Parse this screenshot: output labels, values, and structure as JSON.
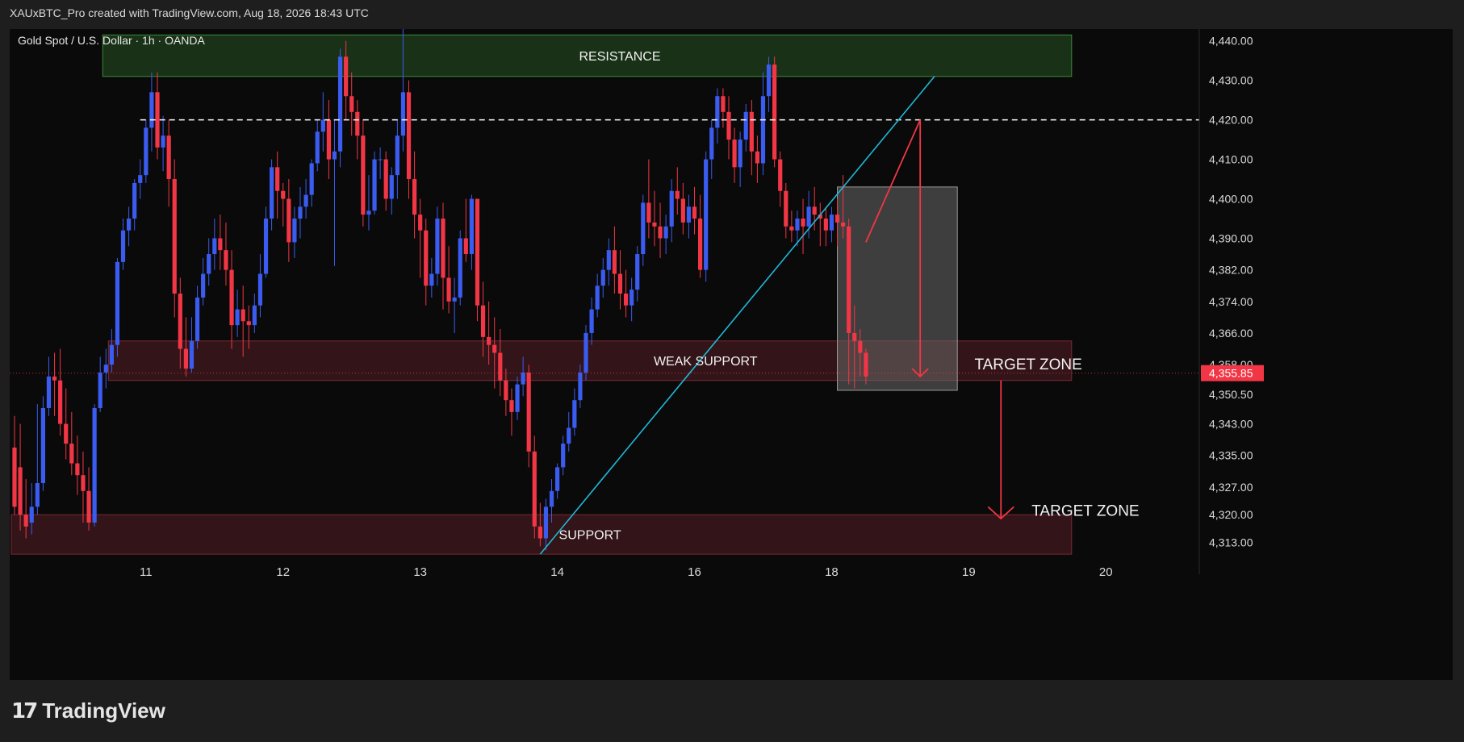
{
  "header": {
    "caption": "XAUxBTC_Pro created with TradingView.com, Aug 18, 2026 18:43 UTC"
  },
  "brand": {
    "logo_mark": "17",
    "name": "TradingView"
  },
  "colors": {
    "up": "#3b5cf0",
    "down": "#f23645",
    "trendline": "#1fb8d6",
    "resistance": "#1c3a1a",
    "zone": "#3d161b",
    "box": "#4a4a4a"
  },
  "chart_data": {
    "type": "candlestick",
    "symbol_label": "Gold Spot / U.S. Dollar · 1h · OANDA",
    "ylim": [
      4309,
      4443
    ],
    "y_ticks": [
      4440,
      4430,
      4420,
      4410,
      4400,
      4390,
      4382,
      4374,
      4366,
      4358,
      4350.5,
      4343,
      4335,
      4327,
      4320,
      4313
    ],
    "y_tick_labels": [
      "4,440.00",
      "4,430.00",
      "4,420.00",
      "4,410.00",
      "4,400.00",
      "4,390.00",
      "4,382.00",
      "4,374.00",
      "4,366.00",
      "4,358.00",
      "4,350.50",
      "4,343.00",
      "4,335.00",
      "4,327.00",
      "4,320.00",
      "4,313.00"
    ],
    "x_ticks": [
      {
        "label": "11",
        "index": 23
      },
      {
        "label": "12",
        "index": 47
      },
      {
        "label": "13",
        "index": 71
      },
      {
        "label": "14",
        "index": 95
      },
      {
        "label": "16",
        "index": 119
      },
      {
        "label": "18",
        "index": 143
      },
      {
        "label": "19",
        "index": 167
      },
      {
        "label": "20",
        "index": 191
      }
    ],
    "last_price": 4355.85,
    "last_price_label": "4,355.85",
    "candles": [
      [
        4337,
        4345,
        4322,
        4320
      ],
      [
        4332,
        4343,
        4320,
        4316
      ],
      [
        4320,
        4329,
        4317,
        4314
      ],
      [
        4318,
        4328,
        4322,
        4315
      ],
      [
        4322,
        4348,
        4328,
        4320
      ],
      [
        4328,
        4350,
        4347,
        4326
      ],
      [
        4347,
        4360,
        4355,
        4345
      ],
      [
        4355,
        4361,
        4354,
        4345
      ],
      [
        4354,
        4362,
        4343,
        4340
      ],
      [
        4343,
        4352,
        4338,
        4334
      ],
      [
        4338,
        4346,
        4333,
        4330
      ],
      [
        4333,
        4340,
        4330,
        4325
      ],
      [
        4330,
        4336,
        4326,
        4318
      ],
      [
        4326,
        4332,
        4318,
        4316
      ],
      [
        4318,
        4348,
        4347,
        4317
      ],
      [
        4347,
        4360,
        4356,
        4346
      ],
      [
        4356,
        4362,
        4358,
        4352
      ],
      [
        4358,
        4367,
        4363,
        4356
      ],
      [
        4363,
        4385,
        4384,
        4360
      ],
      [
        4384,
        4395,
        4392,
        4382
      ],
      [
        4392,
        4398,
        4395,
        4388
      ],
      [
        4395,
        4405,
        4404,
        4392
      ],
      [
        4404,
        4410,
        4406,
        4400
      ],
      [
        4406,
        4420,
        4418,
        4404
      ],
      [
        4418,
        4432,
        4427,
        4412
      ],
      [
        4427,
        4432,
        4413,
        4410
      ],
      [
        4413,
        4421,
        4416,
        4407
      ],
      [
        4416,
        4420,
        4405,
        4398
      ],
      [
        4405,
        4410,
        4376,
        4370
      ],
      [
        4376,
        4380,
        4362,
        4357
      ],
      [
        4362,
        4370,
        4357,
        4355
      ],
      [
        4357,
        4370,
        4364,
        4356
      ],
      [
        4364,
        4378,
        4375,
        4362
      ],
      [
        4375,
        4385,
        4381,
        4373
      ],
      [
        4381,
        4390,
        4386,
        4378
      ],
      [
        4386,
        4395,
        4390,
        4382
      ],
      [
        4390,
        4396,
        4387,
        4382
      ],
      [
        4387,
        4394,
        4382,
        4378
      ],
      [
        4382,
        4387,
        4368,
        4362
      ],
      [
        4368,
        4377,
        4372,
        4365
      ],
      [
        4372,
        4378,
        4369,
        4360
      ],
      [
        4369,
        4373,
        4368,
        4362
      ],
      [
        4368,
        4376,
        4373,
        4366
      ],
      [
        4373,
        4386,
        4381,
        4370
      ],
      [
        4381,
        4398,
        4395,
        4380
      ],
      [
        4395,
        4410,
        4408,
        4392
      ],
      [
        4408,
        4412,
        4402,
        4395
      ],
      [
        4402,
        4404,
        4400,
        4393
      ],
      [
        4400,
        4405,
        4389,
        4384
      ],
      [
        4389,
        4398,
        4395,
        4385
      ],
      [
        4395,
        4403,
        4398,
        4390
      ],
      [
        4398,
        4405,
        4401,
        4395
      ],
      [
        4401,
        4410,
        4409,
        4398
      ],
      [
        4409,
        4420,
        4417,
        4407
      ],
      [
        4417,
        4427,
        4420,
        4412
      ],
      [
        4420,
        4425,
        4410,
        4405
      ],
      [
        4410,
        4420,
        4412,
        4383
      ],
      [
        4412,
        4438,
        4436,
        4408
      ],
      [
        4436,
        4440,
        4426,
        4420
      ],
      [
        4426,
        4432,
        4422,
        4416
      ],
      [
        4422,
        4425,
        4416,
        4410
      ],
      [
        4416,
        4420,
        4396,
        4393
      ],
      [
        4396,
        4406,
        4397,
        4392
      ],
      [
        4397,
        4412,
        4410,
        4396
      ],
      [
        4410,
        4413,
        4410,
        4405
      ],
      [
        4410,
        4412,
        4400,
        4397
      ],
      [
        4400,
        4408,
        4406,
        4396
      ],
      [
        4406,
        4420,
        4416,
        4400
      ],
      [
        4416,
        4447,
        4427,
        4412
      ],
      [
        4427,
        4430,
        4405,
        4400
      ],
      [
        4405,
        4412,
        4396,
        4390
      ],
      [
        4396,
        4400,
        4392,
        4380
      ],
      [
        4392,
        4395,
        4378,
        4373
      ],
      [
        4378,
        4385,
        4381,
        4375
      ],
      [
        4381,
        4398,
        4395,
        4378
      ],
      [
        4395,
        4399,
        4380,
        4372
      ],
      [
        4380,
        4388,
        4374,
        4371
      ],
      [
        4374,
        4380,
        4375,
        4366
      ],
      [
        4375,
        4392,
        4390,
        4373
      ],
      [
        4390,
        4400,
        4386,
        4384
      ],
      [
        4386,
        4401,
        4400,
        4382
      ],
      [
        4400,
        4400,
        4373,
        4369
      ],
      [
        4373,
        4379,
        4365,
        4360
      ],
      [
        4365,
        4374,
        4363,
        4358
      ],
      [
        4363,
        4370,
        4361,
        4352
      ],
      [
        4361,
        4367,
        4354,
        4350
      ],
      [
        4354,
        4357,
        4349,
        4345
      ],
      [
        4349,
        4352,
        4346,
        4340
      ],
      [
        4346,
        4355,
        4353,
        4344
      ],
      [
        4353,
        4360,
        4356,
        4350
      ],
      [
        4356,
        4358,
        4336,
        4332
      ],
      [
        4336,
        4340,
        4317,
        4314
      ],
      [
        4317,
        4323,
        4314,
        4312
      ],
      [
        4314,
        4324,
        4322,
        4311
      ],
      [
        4322,
        4329,
        4326,
        4318
      ],
      [
        4326,
        4333,
        4332,
        4324
      ],
      [
        4332,
        4340,
        4338,
        4330
      ],
      [
        4338,
        4346,
        4342,
        4336
      ],
      [
        4342,
        4352,
        4349,
        4340
      ],
      [
        4349,
        4358,
        4356,
        4347
      ],
      [
        4356,
        4368,
        4366,
        4354
      ],
      [
        4366,
        4375,
        4372,
        4363
      ],
      [
        4372,
        4381,
        4378,
        4370
      ],
      [
        4378,
        4385,
        4382,
        4375
      ],
      [
        4382,
        4390,
        4387,
        4378
      ],
      [
        4387,
        4393,
        4381,
        4376
      ],
      [
        4381,
        4387,
        4376,
        4372
      ],
      [
        4376,
        4382,
        4373,
        4370
      ],
      [
        4373,
        4380,
        4377,
        4369
      ],
      [
        4377,
        4388,
        4386,
        4374
      ],
      [
        4386,
        4401,
        4399,
        4383
      ],
      [
        4399,
        4410,
        4394,
        4390
      ],
      [
        4394,
        4402,
        4393,
        4388
      ],
      [
        4393,
        4399,
        4390,
        4385
      ],
      [
        4390,
        4396,
        4393,
        4386
      ],
      [
        4393,
        4405,
        4402,
        4389
      ],
      [
        4402,
        4408,
        4400,
        4396
      ],
      [
        4400,
        4404,
        4394,
        4391
      ],
      [
        4394,
        4401,
        4398,
        4390
      ],
      [
        4398,
        4403,
        4395,
        4391
      ],
      [
        4395,
        4401,
        4382,
        4380
      ],
      [
        4382,
        4412,
        4410,
        4379
      ],
      [
        4410,
        4420,
        4418,
        4405
      ],
      [
        4418,
        4428,
        4426,
        4414
      ],
      [
        4426,
        4428,
        4422,
        4418
      ],
      [
        4422,
        4426,
        4415,
        4410
      ],
      [
        4415,
        4418,
        4408,
        4404
      ],
      [
        4408,
        4417,
        4415,
        4403
      ],
      [
        4415,
        4424,
        4422,
        4412
      ],
      [
        4422,
        4425,
        4412,
        4406
      ],
      [
        4412,
        4416,
        4409,
        4404
      ],
      [
        4409,
        4432,
        4426,
        4406
      ],
      [
        4426,
        4436,
        4434,
        4422
      ],
      [
        4434,
        4436,
        4410,
        4408
      ],
      [
        4410,
        4412,
        4402,
        4398
      ],
      [
        4402,
        4404,
        4393,
        4390
      ],
      [
        4393,
        4397,
        4392,
        4389
      ],
      [
        4392,
        4397,
        4395,
        4388
      ],
      [
        4395,
        4400,
        4393,
        4386
      ],
      [
        4393,
        4402,
        4398,
        4390
      ],
      [
        4398,
        4403,
        4396,
        4392
      ],
      [
        4396,
        4399,
        4395,
        4388
      ],
      [
        4395,
        4398,
        4392,
        4388
      ],
      [
        4392,
        4398,
        4396,
        4389
      ],
      [
        4396,
        4400,
        4394,
        4388
      ],
      [
        4394,
        4406,
        4393,
        4390
      ],
      [
        4393,
        4395,
        4366,
        4353
      ],
      [
        4366,
        4373,
        4364,
        4352
      ],
      [
        4364,
        4367,
        4361,
        4355
      ],
      [
        4361,
        4362,
        4355,
        4353
      ]
    ],
    "annotations": [
      {
        "type": "zone",
        "label": "RESISTANCE",
        "y_top": 4441.5,
        "y_bottom": 4431,
        "x_start_index": 16,
        "x_end_index": 185
      },
      {
        "type": "zone",
        "label": "WEAK SUPPORT",
        "y_top": 4364,
        "y_bottom": 4354,
        "x_start_index": 17,
        "x_end_index": 185
      },
      {
        "type": "zone",
        "label": "SUPPORT",
        "y_top": 4320,
        "y_bottom": 4310,
        "x_start_index": 0,
        "x_end_index": 185
      },
      {
        "type": "hline",
        "style": "dashed",
        "y": 4420,
        "x_start_index": 22
      },
      {
        "type": "trendline",
        "from": {
          "index": 92,
          "y": 4310
        },
        "to": {
          "index": 161,
          "y": 4431
        }
      },
      {
        "type": "box",
        "y_top": 4403,
        "y_bottom": 4351.5,
        "x_start_index": 144,
        "x_end_index": 165
      },
      {
        "type": "label",
        "text": "TARGET ZONE",
        "index": 168,
        "y": 4358
      },
      {
        "type": "label",
        "text": "TARGET ZONE",
        "index": 178,
        "y": 4321
      }
    ]
  }
}
